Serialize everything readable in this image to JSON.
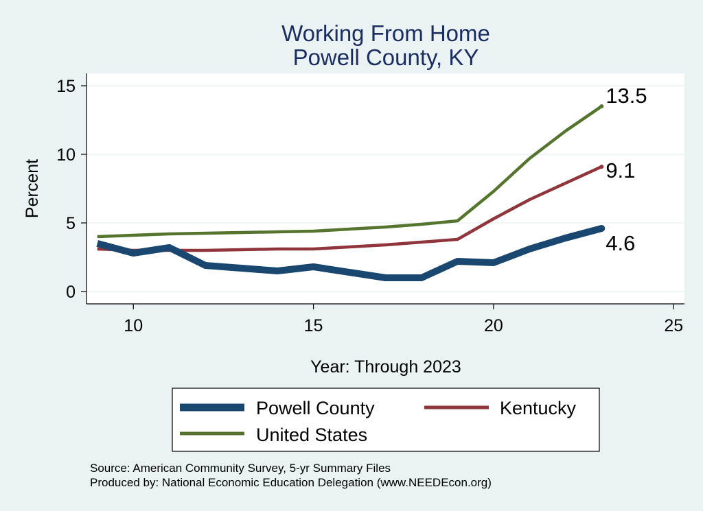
{
  "chart_data": {
    "type": "line",
    "title": "Working From Home",
    "subtitle": "Powell County, KY",
    "xlabel": "Year: Through 2023",
    "ylabel": "Percent",
    "xlim": [
      8.7,
      25.3
    ],
    "ylim": [
      -0.9,
      15.9
    ],
    "xticks": [
      10,
      15,
      20,
      25
    ],
    "yticks": [
      0,
      5,
      10,
      15
    ],
    "grid": true,
    "legend_position": "bottom",
    "x": [
      9,
      10,
      11,
      12,
      13,
      14,
      15,
      16,
      17,
      18,
      19,
      20,
      21,
      22,
      23
    ],
    "series": [
      {
        "name": "Powell County",
        "color": "#1a476f",
        "values": [
          3.5,
          2.8,
          3.2,
          1.9,
          1.7,
          1.5,
          1.8,
          1.4,
          1.0,
          1.0,
          2.2,
          2.1,
          3.1,
          3.9,
          4.6
        ],
        "end_label": "4.6"
      },
      {
        "name": "Kentucky",
        "color": "#90353b",
        "values": [
          3.1,
          3.0,
          3.0,
          3.0,
          3.05,
          3.1,
          3.1,
          3.25,
          3.4,
          3.6,
          3.8,
          5.3,
          6.7,
          7.9,
          9.1
        ],
        "end_label": "9.1"
      },
      {
        "name": "United States",
        "color": "#55752f",
        "values": [
          4.0,
          4.1,
          4.2,
          4.25,
          4.3,
          4.35,
          4.4,
          4.55,
          4.7,
          4.9,
          5.15,
          7.3,
          9.7,
          11.7,
          13.5
        ],
        "end_label": "13.5"
      }
    ]
  },
  "source_note": "Source: American Community Survey, 5-yr Summary Files",
  "produced_note": "Produced by: National Economic Education Delegation (www.NEEDEcon.org)"
}
